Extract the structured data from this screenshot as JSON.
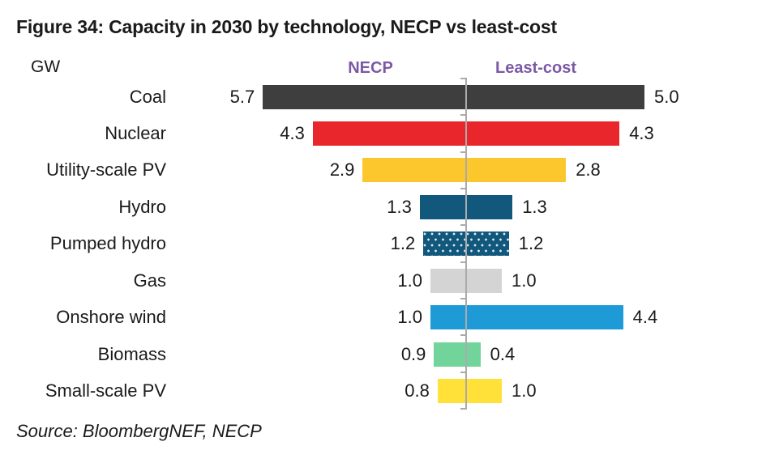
{
  "title": "Figure 34: Capacity in 2030 by technology, NECP vs least-cost",
  "unit_label": "GW",
  "source": "Source: BloombergNEF, NECP",
  "chart_data": {
    "type": "bar",
    "subtype": "diverging-butterfly",
    "title": "Figure 34: Capacity in 2030 by technology, NECP vs least-cost",
    "ylabel": "GW",
    "categories": [
      "Coal",
      "Nuclear",
      "Utility-scale PV",
      "Hydro",
      "Pumped hydro",
      "Gas",
      "Onshore wind",
      "Biomass",
      "Small-scale PV"
    ],
    "series": [
      {
        "name": "NECP",
        "direction": "left",
        "values": [
          5.7,
          4.3,
          2.9,
          1.3,
          1.2,
          1.0,
          1.0,
          0.9,
          0.8
        ]
      },
      {
        "name": "Least-cost",
        "direction": "right",
        "values": [
          5.0,
          4.3,
          2.8,
          1.3,
          1.2,
          1.0,
          4.4,
          0.4,
          1.0
        ]
      }
    ],
    "category_colors": [
      "#3e3e3e",
      "#e8262c",
      "#fcc72c",
      "#11587c",
      "#11587c",
      "#d4d4d4",
      "#1e9bd7",
      "#70d49b",
      "#ffe13a"
    ],
    "category_patterns": [
      null,
      null,
      null,
      null,
      "dots",
      null,
      null,
      null,
      null
    ],
    "header_color": "#7c58a5",
    "axis_color": "#ababab",
    "value_format": "one-decimal",
    "legend_position": "top",
    "grid": false
  }
}
